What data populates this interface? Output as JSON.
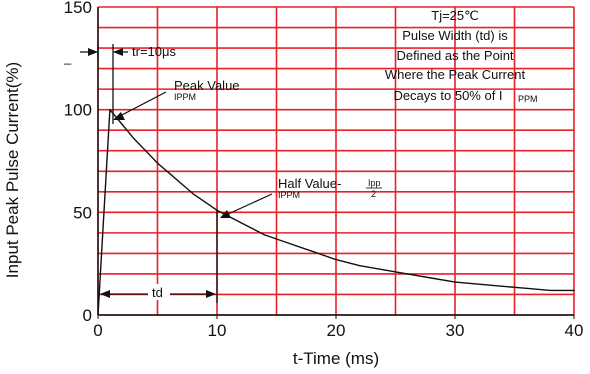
{
  "chart_data": {
    "type": "line",
    "xlabel": "t-Time (ms)",
    "ylabel": "Input Peak Pulse Current(%)",
    "xlim": [
      0,
      40
    ],
    "ylim": [
      0,
      150
    ],
    "x_ticks": [
      0,
      10,
      20,
      30,
      40
    ],
    "y_ticks": [
      0,
      50,
      100,
      150
    ],
    "grid": true,
    "grid_color": "#e8202a",
    "curve_color": "#111111",
    "series": [
      {
        "x": [
          0,
          1.0,
          2,
          3,
          4,
          5,
          6,
          7,
          8,
          9,
          10,
          12,
          14,
          16,
          18,
          20,
          22,
          24,
          26,
          28,
          30,
          32,
          34,
          36,
          38,
          40
        ],
        "values": [
          0,
          100,
          93,
          86,
          80,
          74,
          69,
          64,
          59,
          55,
          51,
          45,
          39,
          35,
          31,
          27,
          24,
          22,
          20,
          18,
          16,
          15,
          14,
          13,
          12,
          12
        ]
      }
    ],
    "annotations": {
      "condition_lines": [
        "Tj=25℃",
        "Pulse Width (td) is",
        "Defined as the Point",
        "Where the Peak Current",
        "Decays to 50% of I"
      ],
      "condition_sub": "PPM",
      "tr": "tr=10μs",
      "peak_value": "Peak Value",
      "peak_sub": "IPPM",
      "half_value": "Half Value-",
      "half_sub": "IPPM",
      "half_frac_num": "Ipp",
      "half_frac_den": "2",
      "td": "td"
    }
  }
}
